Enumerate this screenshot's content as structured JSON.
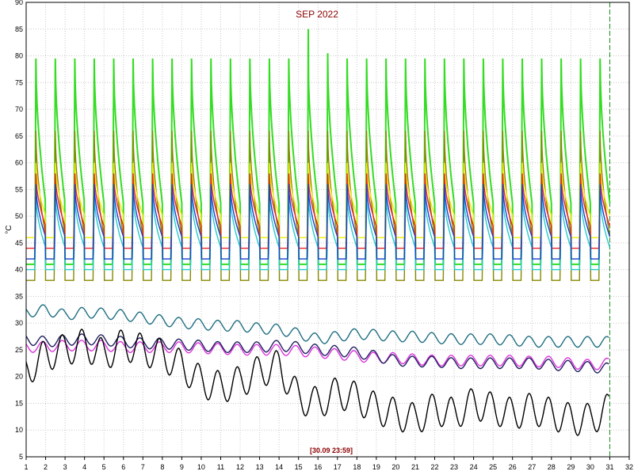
{
  "chart_data": {
    "type": "line",
    "title": "SEP 2022",
    "ylabel": "°C",
    "xlabel": "",
    "timestamp": "[30.09 23:59]",
    "xlim": [
      1,
      32
    ],
    "ylim": [
      5,
      90
    ],
    "x_ticks": [
      1,
      2,
      3,
      4,
      5,
      6,
      7,
      8,
      9,
      10,
      11,
      12,
      13,
      14,
      15,
      16,
      17,
      18,
      19,
      20,
      21,
      22,
      23,
      24,
      25,
      26,
      27,
      28,
      29,
      30,
      31,
      32
    ],
    "y_ticks": [
      5,
      10,
      15,
      20,
      25,
      30,
      35,
      40,
      45,
      50,
      55,
      60,
      65,
      70,
      75,
      80,
      85,
      90
    ],
    "grid": true,
    "current_marker_x": 31,
    "series": [
      {
        "color": "#33dd22",
        "style": "sawtooth",
        "base": 41,
        "peak": 79.5,
        "events": [
          {
            "day": 15.5,
            "value": 85
          },
          {
            "day": 16.5,
            "value": 80.5
          }
        ]
      },
      {
        "color": "#888800",
        "style": "sawtooth",
        "base": 38,
        "peak": 66
      },
      {
        "color": "#eeee00",
        "style": "sawtooth",
        "base": 46,
        "peak": 60
      },
      {
        "color": "#ee2222",
        "style": "sawtooth",
        "base": 44,
        "peak": 58
      },
      {
        "color": "#22cccc",
        "style": "sawtooth",
        "base": 40,
        "peak": 54
      },
      {
        "color": "#1a3fd0",
        "style": "sawtooth",
        "base": 42,
        "peak": 56
      },
      {
        "color": "#1e6e80",
        "style": "wave",
        "values": [
          32,
          32.5,
          31.5,
          32,
          31.8,
          31.5,
          31,
          30.5,
          30,
          29.8,
          29.5,
          29.5,
          29,
          28.8,
          28,
          27,
          27.5,
          28,
          27.8,
          27.5,
          27.5,
          27.2,
          27,
          27,
          27,
          26.8,
          26.5,
          26.5,
          26.5,
          26.5,
          26.5
        ]
      },
      {
        "color": "#dd33dd",
        "style": "wave",
        "values": [
          25.5,
          25.6,
          25.8,
          25.8,
          25.8,
          25.5,
          25.5,
          25.5,
          25.5,
          25.3,
          25.2,
          25,
          25,
          25,
          24.8,
          24.5,
          24.2,
          23.8,
          23.5,
          23.5,
          23.2,
          23,
          23,
          23,
          23,
          23,
          22.8,
          22.8,
          22.5,
          22.2,
          22.5
        ]
      },
      {
        "color": "#202060",
        "style": "wave",
        "values": [
          27,
          26.5,
          26.8,
          27,
          26.8,
          26.5,
          26.2,
          26.2,
          26,
          25.8,
          25.5,
          25.5,
          25.5,
          25.8,
          25.5,
          25,
          24.8,
          24.5,
          23.8,
          23,
          22.8,
          22.8,
          22.5,
          22.5,
          22.5,
          22.5,
          22.5,
          22.2,
          22,
          21.8,
          21.5
        ]
      },
      {
        "color": "#000000",
        "style": "wave",
        "values": [
          21,
          24,
          25,
          26,
          24,
          26,
          25,
          24,
          22,
          19,
          18,
          19,
          21,
          22,
          16,
          15,
          17,
          16,
          14,
          13,
          12,
          14,
          13,
          15,
          14,
          13,
          14,
          13,
          12,
          12,
          14
        ]
      }
    ]
  }
}
